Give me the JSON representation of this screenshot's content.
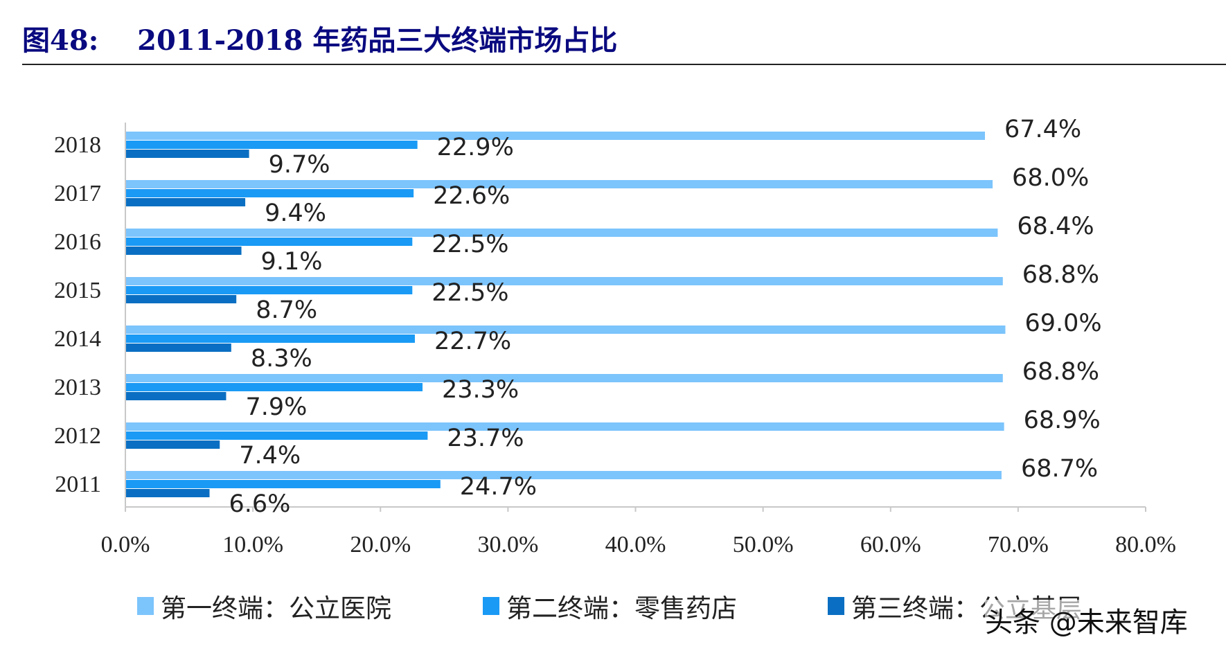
{
  "title": "图48:    2011-2018 年药品三大终端市场占比",
  "watermark": "头条 @未来智库",
  "chart_data": {
    "type": "bar",
    "orientation": "horizontal",
    "categories": [
      "2018",
      "2017",
      "2016",
      "2015",
      "2014",
      "2013",
      "2012",
      "2011"
    ],
    "series": [
      {
        "name": "第一终端：公立医院",
        "color": "#7cc4fc",
        "values": [
          67.4,
          68.0,
          68.4,
          68.8,
          69.0,
          68.8,
          68.9,
          68.7
        ]
      },
      {
        "name": "第二终端：零售药店",
        "color": "#1a9af5",
        "values": [
          22.9,
          22.6,
          22.5,
          22.5,
          22.7,
          23.3,
          23.7,
          24.7
        ]
      },
      {
        "name": "第三终端：公立基层",
        "color": "#0a6fc2",
        "values": [
          9.7,
          9.4,
          9.1,
          8.7,
          8.3,
          7.9,
          7.4,
          6.6
        ]
      }
    ],
    "xlim": [
      0,
      80
    ],
    "xticks": [
      "0.0%",
      "10.0%",
      "20.0%",
      "30.0%",
      "40.0%",
      "50.0%",
      "60.0%",
      "70.0%",
      "80.0%"
    ],
    "value_format": "percent, 1 decimal",
    "grid": false,
    "legend_position": "bottom"
  }
}
